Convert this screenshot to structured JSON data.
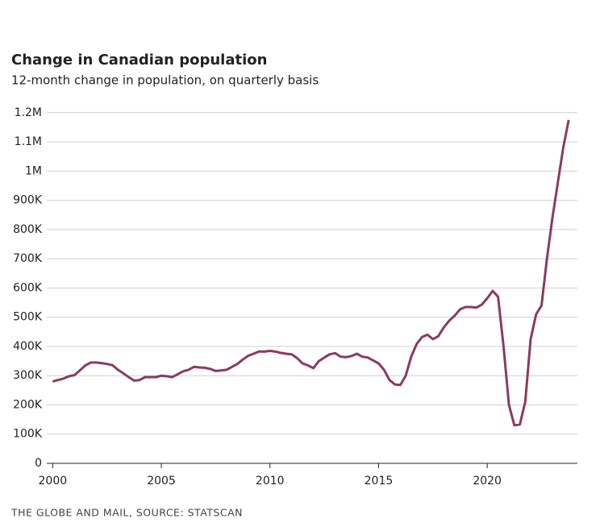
{
  "chart_data": {
    "type": "line",
    "title": "Change in Canadian population",
    "subtitle": "12-month change in population, on quarterly basis",
    "source": "THE GLOBE AND MAIL, SOURCE: STATSCAN",
    "x": [
      2000,
      2000.25,
      2000.5,
      2000.75,
      2001,
      2001.25,
      2001.5,
      2001.75,
      2002,
      2002.25,
      2002.5,
      2002.75,
      2003,
      2003.25,
      2003.5,
      2003.75,
      2004,
      2004.25,
      2004.5,
      2004.75,
      2005,
      2005.25,
      2005.5,
      2005.75,
      2006,
      2006.25,
      2006.5,
      2006.75,
      2007,
      2007.25,
      2007.5,
      2007.75,
      2008,
      2008.25,
      2008.5,
      2008.75,
      2009,
      2009.25,
      2009.5,
      2009.75,
      2010,
      2010.25,
      2010.5,
      2010.75,
      2011,
      2011.25,
      2011.5,
      2011.75,
      2012,
      2012.25,
      2012.5,
      2012.75,
      2013,
      2013.25,
      2013.5,
      2013.75,
      2014,
      2014.25,
      2014.5,
      2014.75,
      2015,
      2015.25,
      2015.5,
      2015.75,
      2016,
      2016.25,
      2016.5,
      2016.75,
      2017,
      2017.25,
      2017.5,
      2017.75,
      2018,
      2018.25,
      2018.5,
      2018.75,
      2019,
      2019.25,
      2019.5,
      2019.75,
      2020,
      2020.25,
      2020.5,
      2020.75,
      2021,
      2021.25,
      2021.5,
      2021.75,
      2022,
      2022.25,
      2022.5,
      2022.75,
      2023,
      2023.25,
      2023.5,
      2023.75
    ],
    "series": [
      {
        "name": "12-month change",
        "color": "#8b3a62",
        "values": [
          280000,
          285000,
          290000,
          298000,
          302000,
          318000,
          335000,
          345000,
          345000,
          343000,
          340000,
          336000,
          320000,
          308000,
          295000,
          283000,
          285000,
          295000,
          295000,
          295000,
          300000,
          298000,
          295000,
          305000,
          315000,
          320000,
          330000,
          328000,
          327000,
          323000,
          316000,
          318000,
          320000,
          330000,
          340000,
          355000,
          368000,
          375000,
          383000,
          382000,
          385000,
          382000,
          378000,
          375000,
          373000,
          360000,
          342000,
          335000,
          326000,
          350000,
          362000,
          373000,
          377000,
          365000,
          363000,
          367000,
          375000,
          365000,
          362000,
          352000,
          342000,
          320000,
          285000,
          270000,
          268000,
          300000,
          365000,
          408000,
          432000,
          440000,
          425000,
          435000,
          465000,
          488000,
          505000,
          527000,
          535000,
          535000,
          533000,
          543000,
          565000,
          590000,
          570000,
          400000,
          200000,
          130000,
          133000,
          210000,
          425000,
          510000,
          540000,
          700000,
          840000,
          960000,
          1080000,
          1175000
        ]
      }
    ],
    "xlim": [
      1999.95,
      2024.3
    ],
    "xticks": [
      2000,
      2005,
      2010,
      2015,
      2020
    ],
    "ylim": [
      0,
      1260000
    ],
    "yticks": [
      0,
      {
        "value": 100000,
        "label": "100K"
      },
      {
        "value": 200000,
        "label": "200K"
      },
      {
        "value": 300000,
        "label": "300K"
      },
      {
        "value": 400000,
        "label": "400K"
      },
      {
        "value": 500000,
        "label": "500K"
      },
      {
        "value": 600000,
        "label": "600K"
      },
      {
        "value": 700000,
        "label": "700K"
      },
      {
        "value": 800000,
        "label": "800K"
      },
      {
        "value": 900000,
        "label": "900K"
      },
      {
        "value": 1000000,
        "label": "1M"
      },
      {
        "value": 1100000,
        "label": "1.1M"
      },
      {
        "value": 1200000,
        "label": "1.2M"
      }
    ],
    "grid": true
  }
}
